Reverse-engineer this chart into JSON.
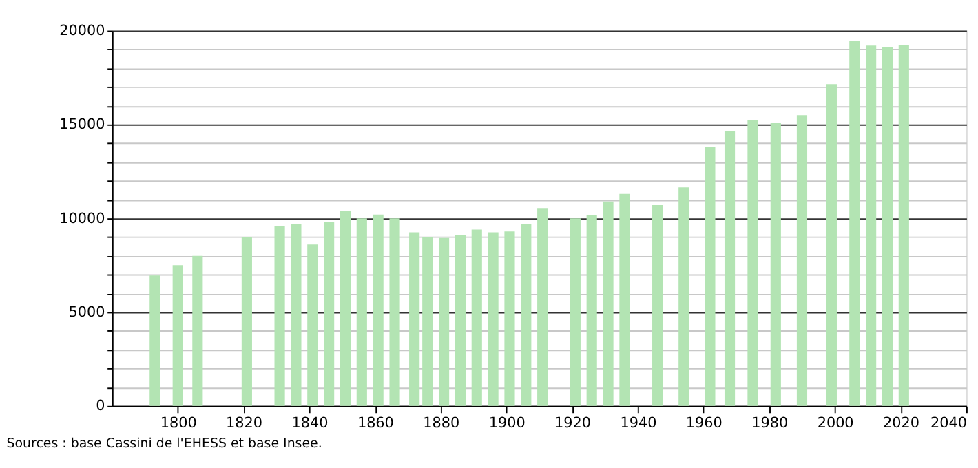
{
  "chart_data": {
    "type": "bar",
    "x": [
      1793,
      1800,
      1806,
      1821,
      1831,
      1836,
      1841,
      1846,
      1851,
      1856,
      1861,
      1866,
      1872,
      1876,
      1881,
      1886,
      1891,
      1896,
      1901,
      1906,
      1911,
      1921,
      1926,
      1931,
      1936,
      1946,
      1954,
      1962,
      1968,
      1975,
      1982,
      1990,
      1999,
      2006,
      2011,
      2016,
      2021
    ],
    "values": [
      6950,
      7500,
      8000,
      9000,
      9600,
      9700,
      8600,
      9800,
      10400,
      10000,
      10200,
      10000,
      9250,
      9000,
      8950,
      9100,
      9400,
      9250,
      9300,
      9700,
      10550,
      10000,
      10150,
      10900,
      11300,
      10700,
      11650,
      13800,
      14650,
      15250,
      15100,
      15500,
      17150,
      19450,
      19200,
      19100,
      19250
    ],
    "color": "#b3e4b3",
    "xlim": [
      1780,
      2040
    ],
    "xticks": [
      1800,
      1820,
      1840,
      1860,
      1880,
      1900,
      1920,
      1940,
      1960,
      1980,
      2000,
      2020,
      2040
    ],
    "ylim": [
      0,
      20000
    ],
    "yticks": [
      0,
      {
        "value": 1000,
        "label": null
      },
      {
        "value": 2000,
        "label": null
      },
      {
        "value": 3000,
        "label": null
      },
      {
        "value": 4000,
        "label": null
      },
      5000,
      {
        "value": 6000,
        "label": null
      },
      {
        "value": 7000,
        "label": null
      },
      {
        "value": 8000,
        "label": null
      },
      {
        "value": 9000,
        "label": null
      },
      10000,
      {
        "value": 11000,
        "label": null
      },
      {
        "value": 12000,
        "label": null
      },
      {
        "value": 13000,
        "label": null
      },
      {
        "value": 14000,
        "label": null
      },
      15000,
      {
        "value": 16000,
        "label": null
      },
      {
        "value": 17000,
        "label": null
      },
      {
        "value": 18000,
        "label": null
      },
      {
        "value": 19000,
        "label": null
      },
      20000
    ],
    "grid": "y",
    "annotations": [
      "Sources : base Cassini de l'EHESS et base Insee."
    ]
  }
}
